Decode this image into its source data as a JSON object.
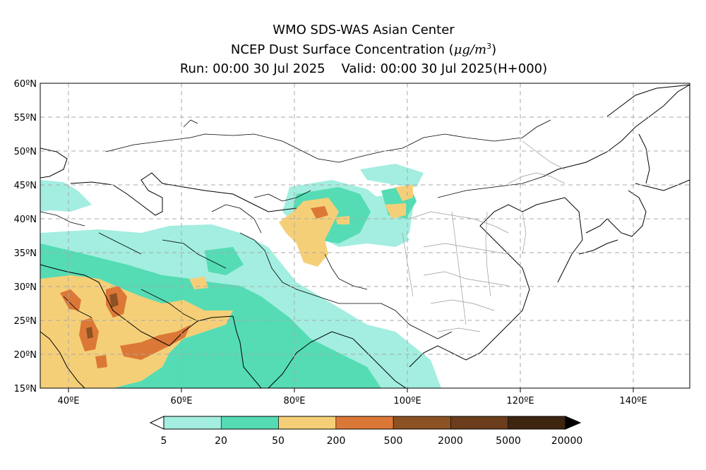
{
  "header": {
    "line1": "WMO SDS-WAS Asian Center",
    "line2_text": "NCEP Dust Surface Concentration (",
    "line2_unit": "μg/m",
    "line2_sup": "3",
    "line2_close": ")",
    "line3_run": "Run: 00:00 30 Jul 2025",
    "line3_valid": "Valid: 00:00 30 Jul 2025(H+000)"
  },
  "map": {
    "lon_range": [
      35,
      150
    ],
    "lat_range": [
      15,
      60
    ],
    "lat_ticks": [
      "60ºN",
      "55ºN",
      "50ºN",
      "45ºN",
      "40ºN",
      "35ºN",
      "30ºN",
      "25ºN",
      "20ºN",
      "15ºN"
    ],
    "lon_ticks": [
      "40ºE",
      "60ºE",
      "80ºE",
      "100ºE",
      "120ºE",
      "140ºE"
    ]
  },
  "colorbar": {
    "levels": [
      "5",
      "20",
      "50",
      "200",
      "500",
      "2000",
      "5000",
      "20000"
    ],
    "colors": [
      "#a3eee0",
      "#55dcb4",
      "#f5cf78",
      "#dc7837",
      "#8c5223",
      "#6b3d1c",
      "#3d2510"
    ]
  }
}
